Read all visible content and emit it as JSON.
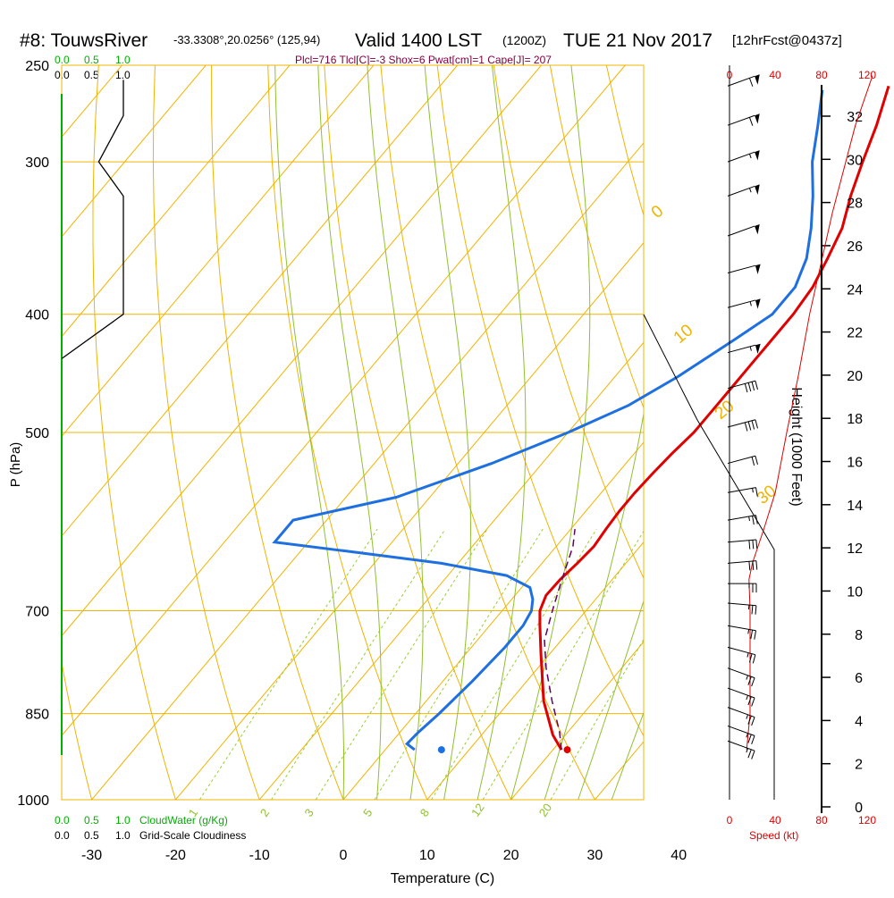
{
  "header": {
    "title_main": "#8: TouwsRiver",
    "coords": "-33.3308°,20.0256° (125,94)",
    "valid": "Valid 1400 LST",
    "zulu": "(1200Z)",
    "date": "TUE 21 Nov 2017",
    "fcst": "[12hrFcst@0437z]",
    "indices": "Plcl=716 Tlcl[C]=-3 Shox=6 Pwat[cm]=1 Cape[J]= 207"
  },
  "colors": {
    "isobar": "#f0b400",
    "adiabat": "#f0b400",
    "mixing": "#9acd32",
    "moist": "#90c030",
    "temp": "#e00000",
    "dewpoint": "#1e6fe0",
    "parcel": "#600060",
    "cloudwater": "#00b000",
    "speed": "#e00000",
    "title": "#000000",
    "indices": "#800040"
  },
  "legend": {
    "cloudwater_top_ticks": [
      "0.0",
      "0.5",
      "1.0"
    ],
    "cloudiness_top_ticks": [
      "0.0",
      "0.5",
      "1.0"
    ],
    "cloudwater_bottom_ticks": [
      "0.0",
      "0.5",
      "1.0"
    ],
    "cloudwater_label": "CloudWater (g/Kg)",
    "cloudiness_bottom_ticks": [
      "0.0",
      "0.5",
      "1.0"
    ],
    "cloudiness_label": "Grid-Scale Cloudiness",
    "speed_ticks": [
      "0",
      "40",
      "80",
      "120"
    ],
    "speed_label": "Speed (kt)"
  },
  "chart_data": {
    "type": "line",
    "subtype": "skew-T log-P sounding",
    "xlabel": "Temperature (C)",
    "ylabel": "P (hPa)",
    "y2label": "Height (1000 Feet)",
    "xlim": [
      -34,
      47
    ],
    "ylim_hpa": [
      1000,
      250
    ],
    "x_ticks": [
      -30,
      -20,
      -10,
      0,
      10,
      20,
      30,
      40
    ],
    "p_ticks": [
      250,
      300,
      400,
      500,
      700,
      850,
      1000
    ],
    "height_ticks_kft": [
      0,
      2,
      4,
      6,
      8,
      10,
      12,
      14,
      16,
      18,
      20,
      22,
      24,
      26,
      28,
      30,
      32
    ],
    "isotherm_labels": [
      "-30",
      "-20",
      "-10",
      "0",
      "10",
      "20",
      "30"
    ],
    "mixing_ratio_labels": [
      "1",
      "2",
      "3",
      "5",
      "8",
      "12",
      "20"
    ],
    "adiabat_labels": [
      "0",
      "10",
      "20",
      "30"
    ],
    "series": [
      {
        "name": "Temperature",
        "points": [
          [
            21.0,
            910
          ],
          [
            18.5,
            885
          ],
          [
            14.0,
            830
          ],
          [
            9.0,
            760
          ],
          [
            6.0,
            720
          ],
          [
            4.5,
            700
          ],
          [
            3.7,
            680
          ],
          [
            3.8,
            660
          ],
          [
            4.2,
            640
          ],
          [
            4.5,
            620
          ],
          [
            4.2,
            600
          ],
          [
            4.0,
            580
          ],
          [
            4.0,
            560
          ],
          [
            4.2,
            540
          ],
          [
            4.5,
            520
          ],
          [
            5.0,
            500
          ],
          [
            5.0,
            480
          ],
          [
            5.0,
            460
          ],
          [
            5.0,
            440
          ],
          [
            5.0,
            420
          ],
          [
            5.0,
            400
          ],
          [
            4.6,
            380
          ],
          [
            3.5,
            360
          ],
          [
            2.2,
            340
          ],
          [
            0.0,
            320
          ],
          [
            -2.0,
            300
          ],
          [
            -4.0,
            280
          ],
          [
            -6.5,
            260
          ]
        ]
      },
      {
        "name": "Dewpoint",
        "points": [
          [
            3.5,
            910
          ],
          [
            2.0,
            900
          ],
          [
            2.2,
            880
          ],
          [
            2.8,
            850
          ],
          [
            3.5,
            800
          ],
          [
            4.0,
            750
          ],
          [
            4.0,
            720
          ],
          [
            3.5,
            700
          ],
          [
            2.5,
            685
          ],
          [
            1.0,
            670
          ],
          [
            -3.0,
            655
          ],
          [
            -12.0,
            640
          ],
          [
            -25.0,
            625
          ],
          [
            -34.0,
            615
          ],
          [
            -34.0,
            590
          ],
          [
            -24.0,
            565
          ],
          [
            -16.0,
            530
          ],
          [
            -10.0,
            500
          ],
          [
            -5.5,
            475
          ],
          [
            -2.5,
            450
          ],
          [
            0.5,
            420
          ],
          [
            2.5,
            400
          ],
          [
            2.5,
            380
          ],
          [
            1.0,
            360
          ],
          [
            -1.5,
            340
          ],
          [
            -4.5,
            320
          ],
          [
            -8.0,
            300
          ],
          [
            -11.0,
            280
          ],
          [
            -14.0,
            262
          ]
        ]
      },
      {
        "name": "Parcel",
        "points": [
          [
            21.0,
            910
          ],
          [
            19.0,
            880
          ],
          [
            15.0,
            830
          ],
          [
            11.0,
            780
          ],
          [
            8.0,
            740
          ],
          [
            6.0,
            700
          ],
          [
            4.0,
            660
          ],
          [
            2.0,
            620
          ],
          [
            0.5,
            600
          ]
        ]
      },
      {
        "name": "Cloudiness",
        "points": [
          [
            0.0,
            435
          ],
          [
            1.0,
            400
          ],
          [
            1.0,
            320
          ],
          [
            0.6,
            300
          ],
          [
            1.0,
            275
          ],
          [
            1.0,
            257
          ]
        ]
      }
    ],
    "surface_temp": {
      "t": 21.7,
      "p": 910
    },
    "surface_dewpoint": {
      "t": 6.7,
      "p": 910
    },
    "wind_speed_kt": [
      [
        15,
        910
      ],
      [
        18,
        850
      ],
      [
        18,
        750
      ],
      [
        18,
        700
      ],
      [
        17,
        660
      ],
      [
        20,
        640
      ],
      [
        30,
        600
      ],
      [
        40,
        560
      ],
      [
        50,
        500
      ],
      [
        60,
        450
      ],
      [
        70,
        400
      ],
      [
        90,
        330
      ],
      [
        110,
        280
      ],
      [
        125,
        255
      ]
    ],
    "wind_barbs": [
      {
        "p": 260,
        "dir": 290,
        "spd": 60
      },
      {
        "p": 280,
        "dir": 290,
        "spd": 60
      },
      {
        "p": 300,
        "dir": 290,
        "spd": 55
      },
      {
        "p": 320,
        "dir": 290,
        "spd": 55
      },
      {
        "p": 345,
        "dir": 290,
        "spd": 50
      },
      {
        "p": 370,
        "dir": 285,
        "spd": 50
      },
      {
        "p": 395,
        "dir": 285,
        "spd": 55
      },
      {
        "p": 430,
        "dir": 285,
        "spd": 55
      },
      {
        "p": 460,
        "dir": 285,
        "spd": 40
      },
      {
        "p": 495,
        "dir": 285,
        "spd": 40
      },
      {
        "p": 530,
        "dir": 285,
        "spd": 20
      },
      {
        "p": 560,
        "dir": 280,
        "spd": 15
      },
      {
        "p": 590,
        "dir": 280,
        "spd": 25
      },
      {
        "p": 615,
        "dir": 275,
        "spd": 30
      },
      {
        "p": 640,
        "dir": 275,
        "spd": 30
      },
      {
        "p": 665,
        "dir": 270,
        "spd": 25
      },
      {
        "p": 690,
        "dir": 265,
        "spd": 25
      },
      {
        "p": 720,
        "dir": 260,
        "spd": 25
      },
      {
        "p": 750,
        "dir": 255,
        "spd": 25
      },
      {
        "p": 780,
        "dir": 250,
        "spd": 25
      },
      {
        "p": 810,
        "dir": 250,
        "spd": 25
      },
      {
        "p": 840,
        "dir": 250,
        "spd": 25
      },
      {
        "p": 870,
        "dir": 250,
        "spd": 25
      },
      {
        "p": 895,
        "dir": 250,
        "spd": 25
      }
    ]
  }
}
